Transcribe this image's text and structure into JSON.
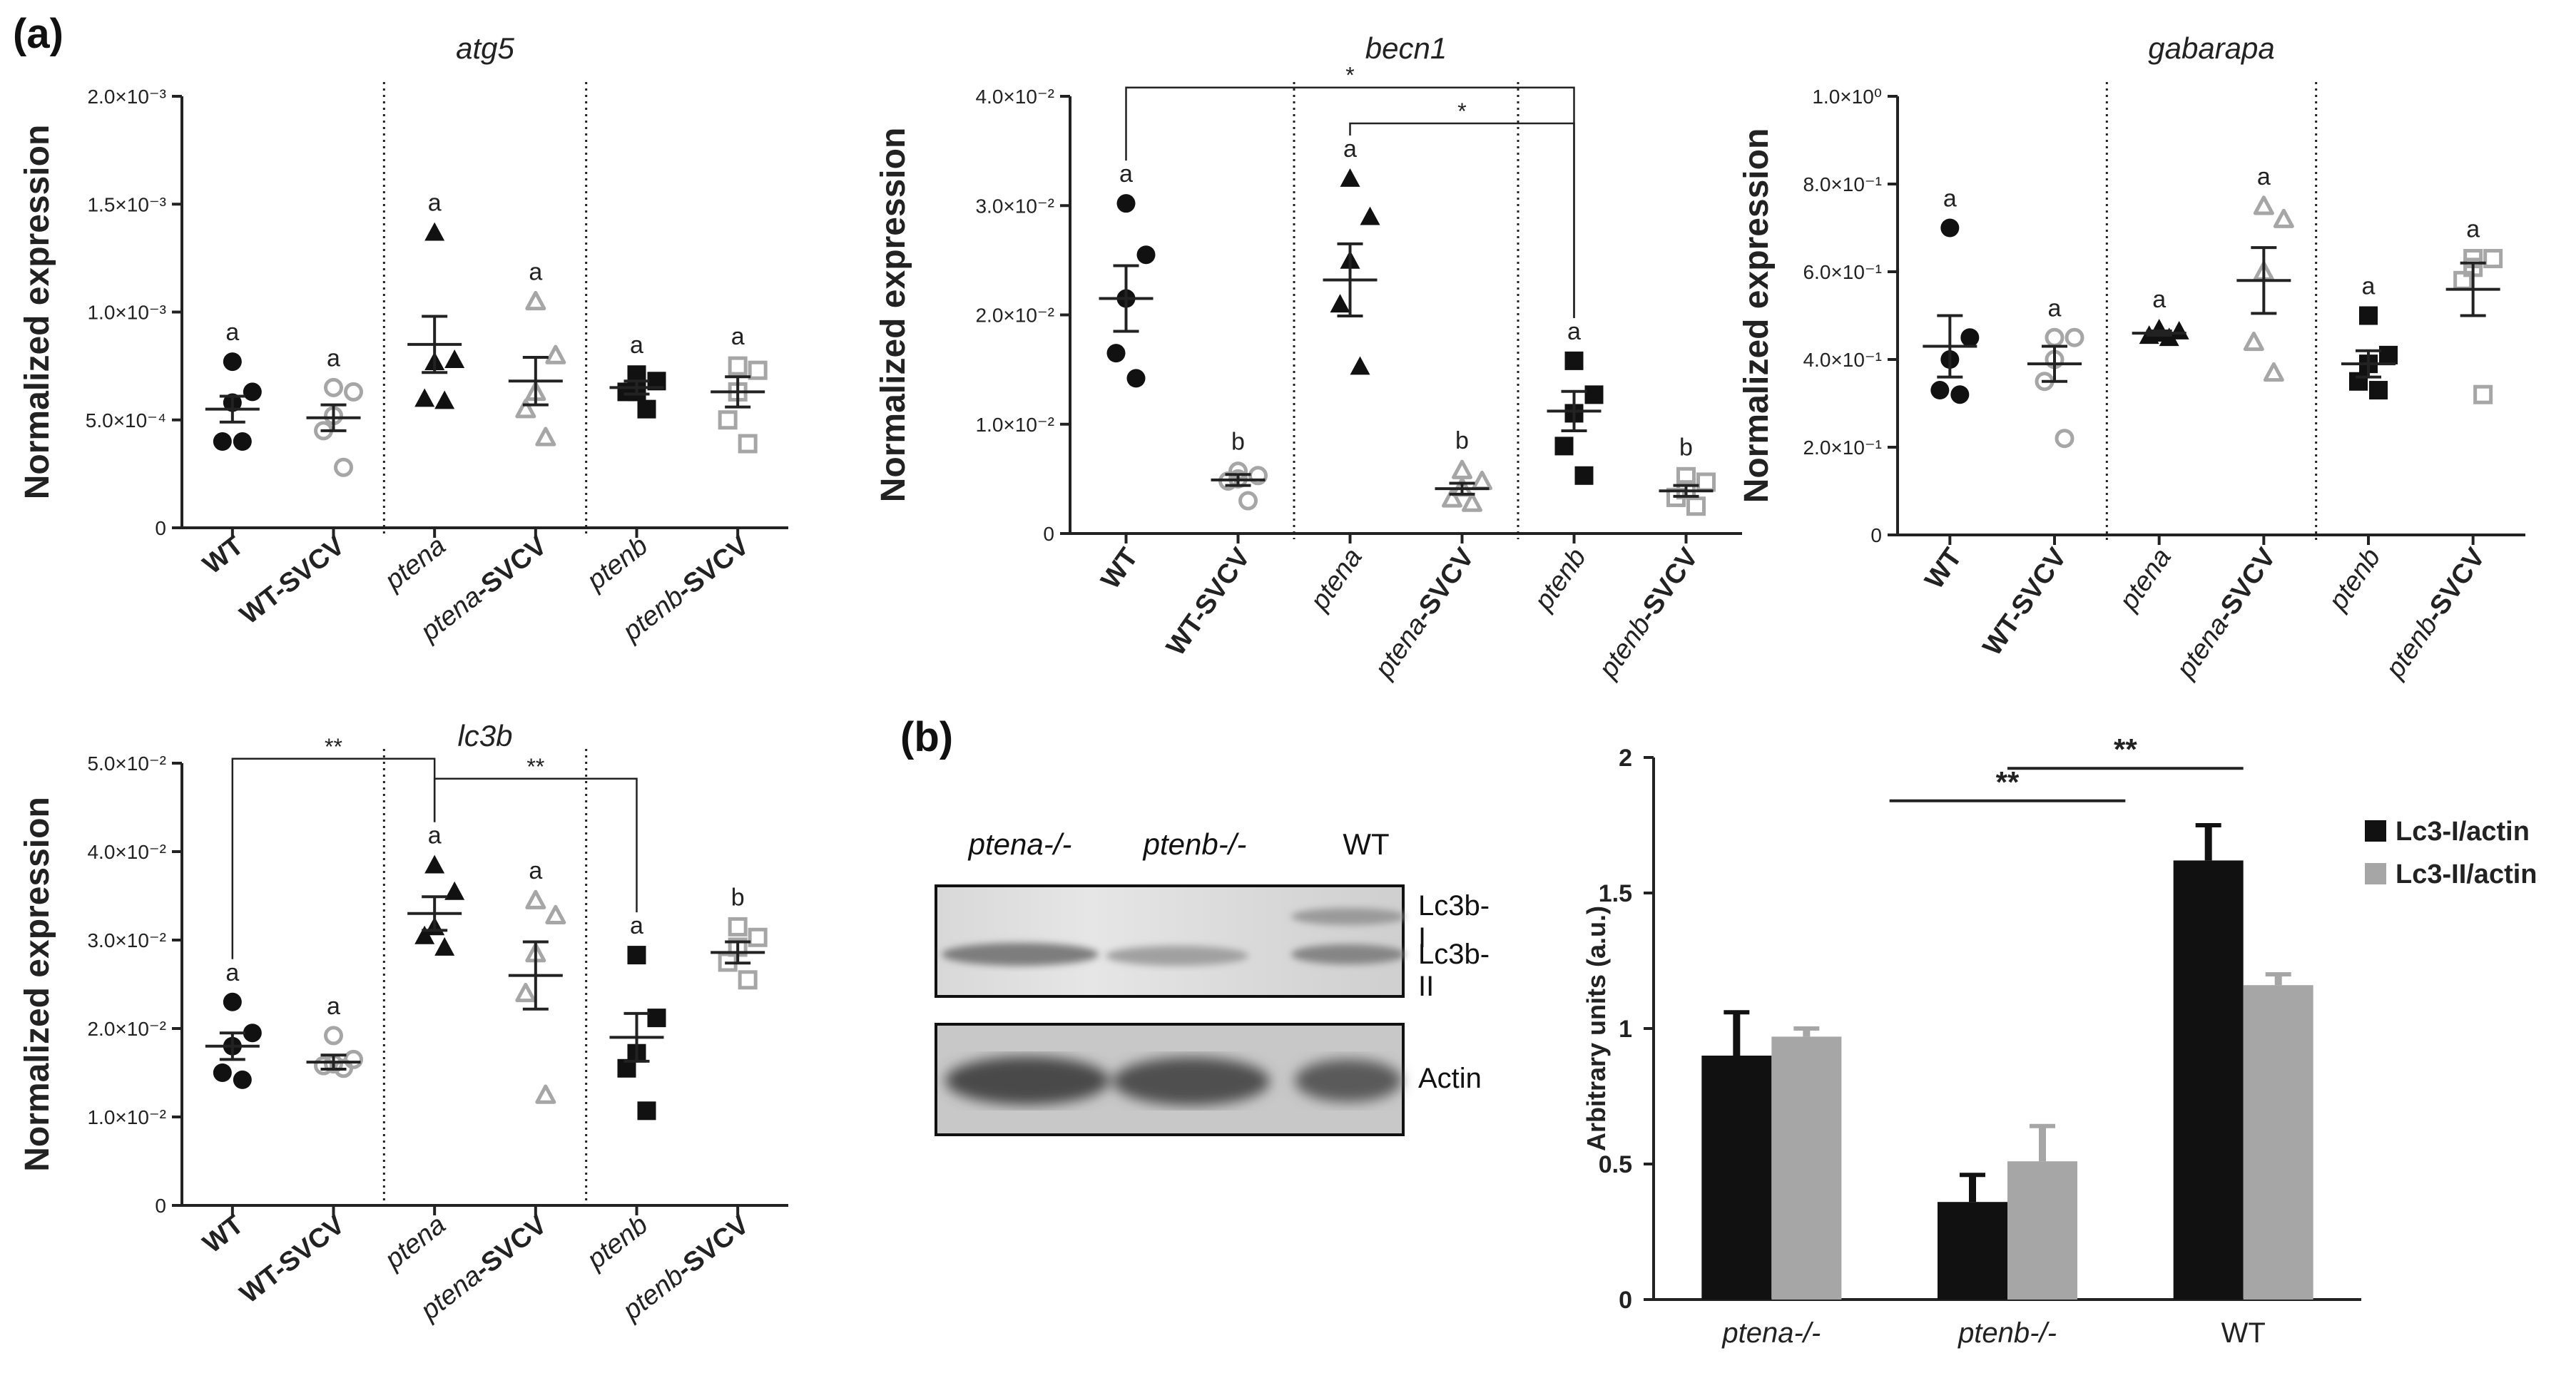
{
  "panel_labels": {
    "a": "(a)",
    "b": "(b)"
  },
  "colors": {
    "black": "#111111",
    "grey": "#a6a6a6",
    "ink": "#222222"
  },
  "chart_data": [
    {
      "type": "scatter",
      "title": "atg5",
      "ylabel": "Normalized expression",
      "ylim": [
        0,
        0.002
      ],
      "yticks": [
        {
          "v": 0,
          "label": "0"
        },
        {
          "v": 0.0005,
          "label": "5.0×10⁻⁴"
        },
        {
          "v": 0.001,
          "label": "1.0×10⁻³"
        },
        {
          "v": 0.0015,
          "label": "1.5×10⁻³"
        },
        {
          "v": 0.002,
          "label": "2.0×10⁻³"
        }
      ],
      "groups": [
        {
          "pre": "WT",
          "post": "",
          "marker": "circle",
          "fill": "black",
          "values": [
            0.00077,
            0.00063,
            0.00058,
            0.0004,
            0.0004
          ],
          "mean": 0.00055,
          "sem": 6e-05,
          "letter": "a"
        },
        {
          "pre": "WT-SVCV",
          "post": "",
          "marker": "circle",
          "fill": "grey",
          "values": [
            0.00065,
            0.00063,
            0.00052,
            0.00045,
            0.00028
          ],
          "mean": 0.00051,
          "sem": 6e-05,
          "letter": "a"
        },
        {
          "pre": "ptena",
          "post": "",
          "marker": "triangle",
          "fill": "black",
          "values": [
            0.00137,
            0.00078,
            0.00077,
            0.0006,
            0.00059
          ],
          "mean": 0.00085,
          "sem": 0.00013,
          "letter": "a"
        },
        {
          "pre": "ptena",
          "post": "-SVCV",
          "marker": "triangle",
          "fill": "grey",
          "values": [
            0.00105,
            0.0008,
            0.00063,
            0.00055,
            0.00042
          ],
          "mean": 0.00068,
          "sem": 0.00011,
          "letter": "a"
        },
        {
          "pre": "ptenb",
          "post": "",
          "marker": "square",
          "fill": "black",
          "values": [
            0.00071,
            0.00068,
            0.00063,
            0.00063,
            0.00055
          ],
          "mean": 0.00065,
          "sem": 3e-05,
          "letter": "a"
        },
        {
          "pre": "ptenb",
          "post": "-SVCV",
          "marker": "square",
          "fill": "grey",
          "values": [
            0.00075,
            0.00073,
            0.00063,
            0.0005,
            0.00039
          ],
          "mean": 0.00063,
          "sem": 7e-05,
          "letter": "a"
        }
      ],
      "brackets": []
    },
    {
      "type": "scatter",
      "title": "becn1",
      "ylabel": "Normalized expression",
      "ylim": [
        0,
        0.04
      ],
      "yticks": [
        {
          "v": 0,
          "label": "0"
        },
        {
          "v": 0.01,
          "label": "1.0×10⁻²"
        },
        {
          "v": 0.02,
          "label": "2.0×10⁻²"
        },
        {
          "v": 0.03,
          "label": "3.0×10⁻²"
        },
        {
          "v": 0.04,
          "label": "4.0×10⁻²"
        }
      ],
      "groups": [
        {
          "pre": "WT",
          "post": "",
          "marker": "circle",
          "fill": "black",
          "values": [
            0.0302,
            0.0255,
            0.0215,
            0.0165,
            0.0142
          ],
          "mean": 0.0215,
          "sem": 0.003,
          "letter": "a"
        },
        {
          "pre": "WT-SVCV",
          "post": "",
          "marker": "circle",
          "fill": "grey",
          "values": [
            0.0057,
            0.0053,
            0.005,
            0.0048,
            0.003
          ],
          "mean": 0.0049,
          "sem": 0.0005,
          "letter": "b"
        },
        {
          "pre": "ptena",
          "post": "",
          "marker": "triangle",
          "fill": "black",
          "values": [
            0.0325,
            0.029,
            0.025,
            0.021,
            0.0153
          ],
          "mean": 0.0232,
          "sem": 0.0033,
          "letter": "a"
        },
        {
          "pre": "ptena",
          "post": "-SVCV",
          "marker": "triangle",
          "fill": "grey",
          "values": [
            0.0058,
            0.0048,
            0.0042,
            0.0032,
            0.0028
          ],
          "mean": 0.0041,
          "sem": 0.0005,
          "letter": "b"
        },
        {
          "pre": "ptenb",
          "post": "",
          "marker": "square",
          "fill": "black",
          "values": [
            0.0158,
            0.0127,
            0.011,
            0.008,
            0.0053
          ],
          "mean": 0.0112,
          "sem": 0.0018,
          "letter": "a"
        },
        {
          "pre": "ptenb",
          "post": "-SVCV",
          "marker": "square",
          "fill": "grey",
          "values": [
            0.0052,
            0.0047,
            0.004,
            0.0033,
            0.0025
          ],
          "mean": 0.0039,
          "sem": 0.0005,
          "letter": "b"
        }
      ],
      "brackets": [
        {
          "from": 0,
          "to": 4,
          "y": 0.0408,
          "label": "*"
        },
        {
          "from": 2,
          "to": 4,
          "y": 0.0387,
          "label": "*"
        }
      ]
    },
    {
      "type": "scatter",
      "title": "gabarapa",
      "ylabel": "Normalized expression",
      "ylim": [
        0,
        1.0
      ],
      "yticks": [
        {
          "v": 0,
          "label": "0"
        },
        {
          "v": 0.2,
          "label": "2.0×10⁻¹"
        },
        {
          "v": 0.4,
          "label": "4.0×10⁻¹"
        },
        {
          "v": 0.6,
          "label": "6.0×10⁻¹"
        },
        {
          "v": 0.8,
          "label": "8.0×10⁻¹"
        },
        {
          "v": 1.0,
          "label": "1.0×10⁰"
        }
      ],
      "groups": [
        {
          "pre": "WT",
          "post": "",
          "marker": "circle",
          "fill": "black",
          "values": [
            0.7,
            0.45,
            0.4,
            0.33,
            0.32
          ],
          "mean": 0.43,
          "sem": 0.07,
          "letter": "a"
        },
        {
          "pre": "WT-SVCV",
          "post": "",
          "marker": "circle",
          "fill": "grey",
          "values": [
            0.45,
            0.45,
            0.4,
            0.35,
            0.22
          ],
          "mean": 0.39,
          "sem": 0.04,
          "letter": "a"
        },
        {
          "pre": "ptena",
          "post": "",
          "marker": "triangle",
          "fill": "black",
          "values": [
            0.47,
            0.465,
            0.46,
            0.455,
            0.45
          ],
          "mean": 0.46,
          "sem": 0.005,
          "letter": "a"
        },
        {
          "pre": "ptena",
          "post": "-SVCV",
          "marker": "triangle",
          "fill": "grey",
          "values": [
            0.75,
            0.72,
            0.6,
            0.44,
            0.37
          ],
          "mean": 0.58,
          "sem": 0.075,
          "letter": "a"
        },
        {
          "pre": "ptenb",
          "post": "",
          "marker": "square",
          "fill": "black",
          "values": [
            0.5,
            0.41,
            0.39,
            0.35,
            0.33
          ],
          "mean": 0.39,
          "sem": 0.03,
          "letter": "a"
        },
        {
          "pre": "ptenb",
          "post": "-SVCV",
          "marker": "square",
          "fill": "grey",
          "values": [
            0.63,
            0.63,
            0.61,
            0.58,
            0.32
          ],
          "mean": 0.56,
          "sem": 0.06,
          "letter": "a"
        }
      ],
      "brackets": []
    },
    {
      "type": "scatter",
      "title": "lc3b",
      "ylabel": "Normalized expression",
      "ylim": [
        0,
        0.05
      ],
      "yticks": [
        {
          "v": 0,
          "label": "0"
        },
        {
          "v": 0.01,
          "label": "1.0×10⁻²"
        },
        {
          "v": 0.02,
          "label": "2.0×10⁻²"
        },
        {
          "v": 0.03,
          "label": "3.0×10⁻²"
        },
        {
          "v": 0.04,
          "label": "4.0×10⁻²"
        },
        {
          "v": 0.05,
          "label": "5.0×10⁻²"
        }
      ],
      "groups": [
        {
          "pre": "WT",
          "post": "",
          "marker": "circle",
          "fill": "black",
          "values": [
            0.023,
            0.0195,
            0.018,
            0.015,
            0.0142
          ],
          "mean": 0.018,
          "sem": 0.0015,
          "letter": "a"
        },
        {
          "pre": "WT-SVCV",
          "post": "",
          "marker": "circle",
          "fill": "grey",
          "values": [
            0.0192,
            0.0165,
            0.016,
            0.0158,
            0.0155
          ],
          "mean": 0.0162,
          "sem": 0.0008,
          "letter": "a"
        },
        {
          "pre": "ptena",
          "post": "",
          "marker": "triangle",
          "fill": "black",
          "values": [
            0.0385,
            0.0355,
            0.0315,
            0.0305,
            0.0292
          ],
          "mean": 0.033,
          "sem": 0.0019,
          "letter": "a"
        },
        {
          "pre": "ptena",
          "post": "-SVCV",
          "marker": "triangle",
          "fill": "grey",
          "values": [
            0.0345,
            0.0328,
            0.0285,
            0.024,
            0.0125
          ],
          "mean": 0.026,
          "sem": 0.0038,
          "letter": "a"
        },
        {
          "pre": "ptenb",
          "post": "",
          "marker": "square",
          "fill": "black",
          "values": [
            0.0283,
            0.0212,
            0.0172,
            0.0155,
            0.0107
          ],
          "mean": 0.019,
          "sem": 0.0027,
          "letter": "a"
        },
        {
          "pre": "ptenb",
          "post": "-SVCV",
          "marker": "square",
          "fill": "grey",
          "values": [
            0.0315,
            0.0303,
            0.0292,
            0.0275,
            0.0255
          ],
          "mean": 0.0286,
          "sem": 0.0012,
          "letter": "b"
        }
      ],
      "brackets": [
        {
          "from": 0,
          "to": 2,
          "y": 0.0505,
          "label": "**"
        },
        {
          "from": 2,
          "to": 4,
          "y": 0.0505,
          "label": "**"
        }
      ]
    },
    {
      "type": "bar",
      "title": "",
      "ylabel": "Arbitrary units (a.u.)",
      "ylim": [
        0,
        2
      ],
      "yticks": [
        {
          "v": 0,
          "label": "0"
        },
        {
          "v": 0.5,
          "label": "0.5"
        },
        {
          "v": 1,
          "label": "1"
        },
        {
          "v": 1.5,
          "label": "1.5"
        },
        {
          "v": 2,
          "label": "2"
        }
      ],
      "categories": [
        "ptena-/-",
        "ptenb-/-",
        "WT"
      ],
      "categories_italic": [
        true,
        true,
        false
      ],
      "series": [
        {
          "name": "Lc3-I/actin",
          "color": "#111111",
          "values": [
            0.9,
            0.36,
            1.62
          ],
          "errors": [
            0.16,
            0.1,
            0.13
          ]
        },
        {
          "name": "Lc3-II/actin",
          "color": "#a6a6a6",
          "values": [
            0.97,
            0.51,
            1.16
          ],
          "errors": [
            0.03,
            0.13,
            0.04
          ]
        }
      ],
      "legend_position": "right",
      "brackets": [
        {
          "from": 1,
          "to": 2,
          "y": 1.96,
          "label": "**"
        },
        {
          "from": 0.5,
          "to": 1.5,
          "y": 1.84,
          "label": "**"
        }
      ]
    }
  ],
  "blot": {
    "columns": [
      "ptena-/-",
      "ptenb-/-",
      "WT"
    ],
    "columns_italic": [
      true,
      true,
      false
    ],
    "bands": [
      "Lc3b-I",
      "Lc3b-II",
      "Actin"
    ]
  }
}
